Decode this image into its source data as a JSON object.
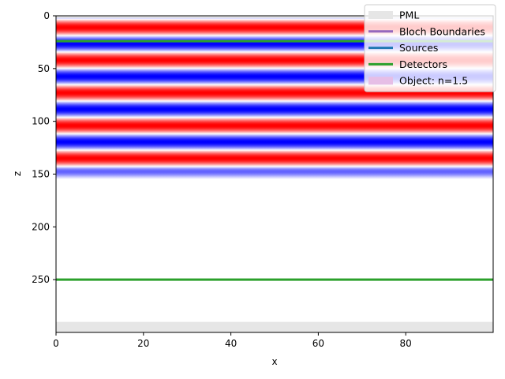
{
  "chart_data": {
    "type": "heatmap",
    "title": "",
    "xlabel": "x",
    "ylabel": "z",
    "xlim": [
      0,
      100
    ],
    "ylim": [
      0,
      300
    ],
    "y_inverted": true,
    "x_ticks": [
      0,
      20,
      40,
      60,
      80
    ],
    "y_ticks": [
      0,
      50,
      100,
      150,
      200,
      250
    ],
    "grid": false,
    "legend_position": "top-right",
    "colors": {
      "positive": "#ff0000",
      "negative": "#0000ff",
      "pml": "#e6e6e6",
      "bloch": "#9467bd",
      "sources": "#1f77b4",
      "detectors": "#2ca02c",
      "object": "#e6bee6"
    },
    "field_z_extent": [
      0,
      155
    ],
    "field_wavelength": 31,
    "field_phase_peak_z": 11,
    "field_tail_start": 145,
    "pml_regions": [
      [
        0,
        2
      ],
      [
        290,
        300
      ]
    ],
    "detector_lines_z": [
      24,
      250
    ],
    "legend": [
      {
        "label": "PML",
        "kind": "pml"
      },
      {
        "label": "Bloch Boundaries",
        "kind": "bloch"
      },
      {
        "label": "Sources",
        "kind": "sources"
      },
      {
        "label": "Detectors",
        "kind": "detectors"
      },
      {
        "label": "Object: n=1.5",
        "kind": "object"
      }
    ]
  }
}
